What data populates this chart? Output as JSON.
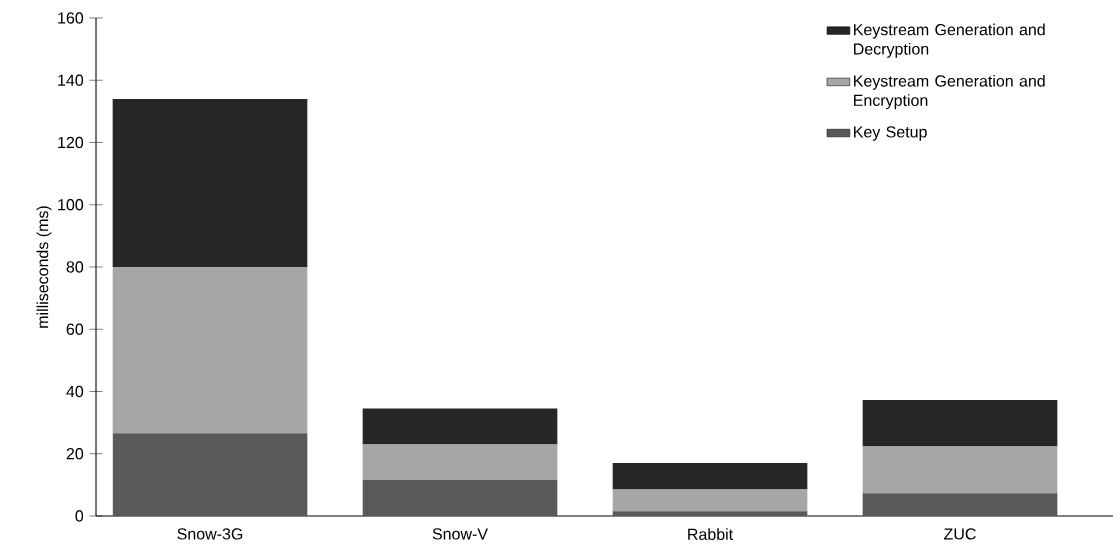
{
  "chart_data": {
    "type": "bar",
    "stacked": true,
    "ylabel": "milliseconds (ms)",
    "categories": [
      "Snow-3G",
      "Snow-V",
      "Rabbit",
      "ZUC"
    ],
    "series": [
      {
        "name": "Key Setup",
        "color": "#595959",
        "values": [
          26.6,
          11.6,
          1.5,
          7.3
        ]
      },
      {
        "name": "Keystream Generation and Encryption",
        "color": "#a6a6a6",
        "values": [
          53.4,
          11.4,
          7,
          15
        ]
      },
      {
        "name": "Keystream Generation and Decryption",
        "color": "#262626",
        "values": [
          54,
          11.5,
          8.5,
          15
        ]
      }
    ],
    "ylim": [
      0,
      160
    ],
    "yticks": [
      0,
      20,
      40,
      60,
      80,
      100,
      120,
      140,
      160
    ],
    "legend": "top right"
  }
}
